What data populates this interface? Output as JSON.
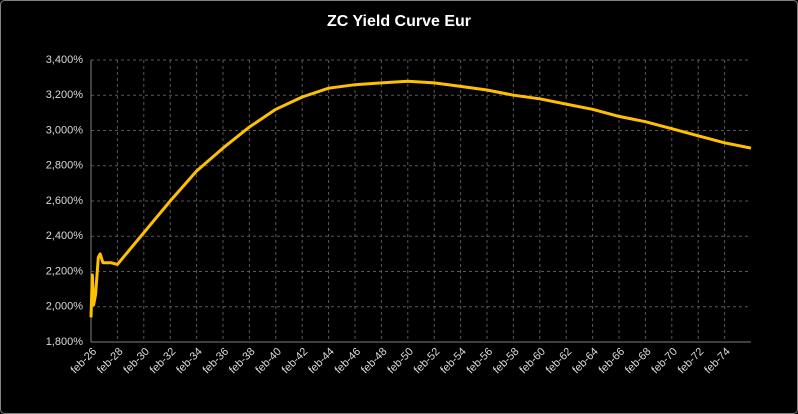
{
  "chart_data": {
    "type": "line",
    "title": "ZC Yield Curve Eur",
    "series": [
      {
        "name": "ZC Yield Curve Eur",
        "color": "#ffc000",
        "x": [
          26.0,
          26.1,
          26.2,
          26.35,
          26.55,
          26.7,
          26.9,
          27.5,
          28,
          30,
          32,
          34,
          36,
          38,
          40,
          42,
          44,
          46,
          48,
          50,
          52,
          54,
          56,
          58,
          60,
          62,
          64,
          66,
          68,
          70,
          72,
          74,
          76
        ],
        "values": [
          1.94,
          2.18,
          2.01,
          2.07,
          2.28,
          2.3,
          2.25,
          2.25,
          2.24,
          2.42,
          2.6,
          2.77,
          2.9,
          3.02,
          3.12,
          3.19,
          3.24,
          3.26,
          3.27,
          3.28,
          3.27,
          3.25,
          3.23,
          3.2,
          3.18,
          3.15,
          3.12,
          3.08,
          3.05,
          3.01,
          2.97,
          2.93,
          2.9
        ]
      }
    ],
    "xlim": [
      26,
      76
    ],
    "xticks": [
      {
        "value": 26,
        "label": "feb-26"
      },
      {
        "value": 28,
        "label": "feb-28"
      },
      {
        "value": 30,
        "label": "feb-30"
      },
      {
        "value": 32,
        "label": "feb-32"
      },
      {
        "value": 34,
        "label": "feb-34"
      },
      {
        "value": 36,
        "label": "feb-36"
      },
      {
        "value": 38,
        "label": "feb-38"
      },
      {
        "value": 40,
        "label": "feb-40"
      },
      {
        "value": 42,
        "label": "feb-42"
      },
      {
        "value": 44,
        "label": "feb-44"
      },
      {
        "value": 46,
        "label": "feb-46"
      },
      {
        "value": 48,
        "label": "feb-48"
      },
      {
        "value": 50,
        "label": "feb-50"
      },
      {
        "value": 52,
        "label": "feb-52"
      },
      {
        "value": 54,
        "label": "feb-54"
      },
      {
        "value": 56,
        "label": "feb-56"
      },
      {
        "value": 58,
        "label": "feb-58"
      },
      {
        "value": 60,
        "label": "feb-60"
      },
      {
        "value": 62,
        "label": "feb-62"
      },
      {
        "value": 64,
        "label": "feb-64"
      },
      {
        "value": 66,
        "label": "feb-66"
      },
      {
        "value": 68,
        "label": "feb-68"
      },
      {
        "value": 70,
        "label": "feb-70"
      },
      {
        "value": 72,
        "label": "feb-72"
      },
      {
        "value": 74,
        "label": "feb-74"
      }
    ],
    "ylim": [
      1.8,
      3.4
    ],
    "yticks": [
      {
        "value": 1.8,
        "label": "1,800%"
      },
      {
        "value": 2.0,
        "label": "2,000%"
      },
      {
        "value": 2.2,
        "label": "2,200%"
      },
      {
        "value": 2.4,
        "label": "2,400%"
      },
      {
        "value": 2.6,
        "label": "2,600%"
      },
      {
        "value": 2.8,
        "label": "2,800%"
      },
      {
        "value": 3.0,
        "label": "3,000%"
      },
      {
        "value": 3.2,
        "label": "3,200%"
      },
      {
        "value": 3.4,
        "label": "3,400%"
      }
    ],
    "grid": true
  }
}
